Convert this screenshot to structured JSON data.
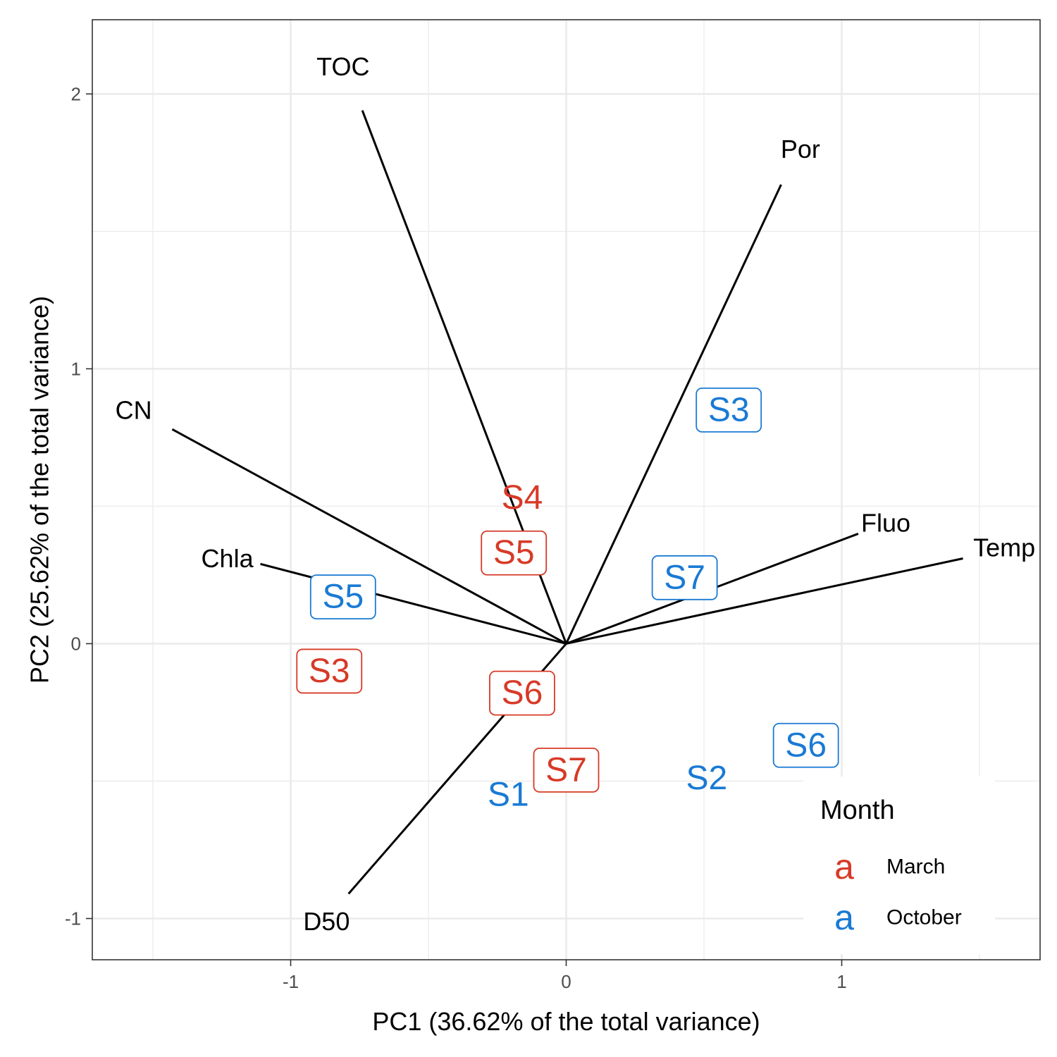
{
  "chart_data": {
    "type": "scatter",
    "subtype": "pca-biplot",
    "title": "",
    "xlabel": "PC1 (36.62% of the total variance)",
    "ylabel": "PC2 (25.62% of the total variance)",
    "xlim": [
      -1.72,
      1.72
    ],
    "ylim": [
      -1.15,
      2.27
    ],
    "x_ticks": [
      -1,
      0,
      1
    ],
    "y_ticks": [
      -1,
      0,
      1,
      2
    ],
    "grid": true,
    "legend_position": "bottom-right",
    "legend": {
      "title": "Month",
      "key_glyph": "a",
      "entries": [
        {
          "label": "March",
          "color": "#d73a27"
        },
        {
          "label": "October",
          "color": "#1a7ad4"
        }
      ]
    },
    "loadings": [
      {
        "name": "TOC",
        "x": -0.74,
        "y": 1.94,
        "label_x": -0.81,
        "label_y": 2.1
      },
      {
        "name": "Por",
        "x": 0.78,
        "y": 1.67,
        "label_x": 0.85,
        "label_y": 1.8
      },
      {
        "name": "CN",
        "x": -1.43,
        "y": 0.78,
        "label_x": -1.57,
        "label_y": 0.85
      },
      {
        "name": "Fluo",
        "x": 1.06,
        "y": 0.4,
        "label_x": 1.16,
        "label_y": 0.44
      },
      {
        "name": "Temp",
        "x": 1.44,
        "y": 0.31,
        "label_x": 1.59,
        "label_y": 0.35
      },
      {
        "name": "Chla",
        "x": -1.11,
        "y": 0.29,
        "label_x": -1.23,
        "label_y": 0.31
      },
      {
        "name": "D50",
        "x": -0.79,
        "y": -0.91,
        "label_x": -0.87,
        "label_y": -1.01
      }
    ],
    "samples": [
      {
        "label": "S4",
        "month": "March",
        "x": -0.16,
        "y": 0.53,
        "boxed": false
      },
      {
        "label": "S5",
        "month": "March",
        "x": -0.19,
        "y": 0.33,
        "boxed": true
      },
      {
        "label": "S3",
        "month": "March",
        "x": -0.86,
        "y": -0.1,
        "boxed": true
      },
      {
        "label": "S6",
        "month": "March",
        "x": -0.16,
        "y": -0.18,
        "boxed": true
      },
      {
        "label": "S7",
        "month": "March",
        "x": 0.0,
        "y": -0.46,
        "boxed": true
      },
      {
        "label": "S3",
        "month": "October",
        "x": 0.59,
        "y": 0.85,
        "boxed": true
      },
      {
        "label": "S7",
        "month": "October",
        "x": 0.43,
        "y": 0.24,
        "boxed": true
      },
      {
        "label": "S5",
        "month": "October",
        "x": -0.81,
        "y": 0.17,
        "boxed": true
      },
      {
        "label": "S6",
        "month": "October",
        "x": 0.87,
        "y": -0.37,
        "boxed": true
      },
      {
        "label": "S2",
        "month": "October",
        "x": 0.51,
        "y": -0.49,
        "boxed": false
      },
      {
        "label": "S1",
        "month": "October",
        "x": -0.21,
        "y": -0.55,
        "boxed": false
      }
    ]
  }
}
